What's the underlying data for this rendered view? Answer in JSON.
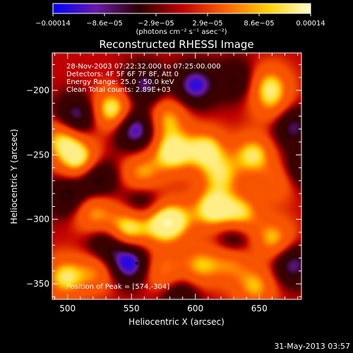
{
  "chart_data": {
    "type": "heatmap",
    "title": "Reconstructed RHESSI Image",
    "xlabel": "Heliocentric X (arcsec)",
    "ylabel": "Heliocentric Y (arcsec)",
    "xlim": [
      488,
      683
    ],
    "ylim": [
      -362,
      -171
    ],
    "x_ticks": [
      500,
      550,
      600,
      650
    ],
    "y_ticks": [
      -200,
      -250,
      -300,
      -350
    ],
    "x_tick_labels": [
      "500",
      "550",
      "600",
      "650"
    ],
    "y_tick_labels": [
      "−200",
      "−250",
      "−300",
      "−350"
    ],
    "colorbar": {
      "tick_labels": [
        "−0.00014",
        "−8.6e−05",
        "−2.9e−05",
        "2.9e−05",
        "8.6e−05",
        "0.00014"
      ],
      "units_label": "(photons cm⁻² s⁻¹ asec⁻²)",
      "range": [
        -0.00014,
        0.00014
      ],
      "colormap": [
        "#0000ff",
        "#6a1aa8",
        "#2a0000",
        "#c00000",
        "#ff6000",
        "#ffd000",
        "#ffffd0"
      ]
    },
    "annotations": [
      "28-Nov-2003 07:22:32.000 to 07:25:00.000",
      "Detectors: 4F 5F 6F 7F 8F, Att 0",
      "Energy Range: 25.0 - 50.0 keV",
      "Clean    Total counts: 2.89E+03"
    ],
    "peak_label": "Position of Peak = [574,-304]",
    "peak": [
      574,
      -304
    ],
    "blobs": [
      {
        "x": 535,
        "y": -215,
        "v": 1.0
      },
      {
        "x": 578,
        "y": -222,
        "v": 0.7
      },
      {
        "x": 658,
        "y": -196,
        "v": 0.75
      },
      {
        "x": 660,
        "y": -212,
        "v": 0.45
      },
      {
        "x": 496,
        "y": -238,
        "v": 0.8
      },
      {
        "x": 509,
        "y": -254,
        "v": 0.95
      },
      {
        "x": 582,
        "y": -248,
        "v": 1.0
      },
      {
        "x": 608,
        "y": -246,
        "v": 0.9
      },
      {
        "x": 558,
        "y": -265,
        "v": 0.7
      },
      {
        "x": 645,
        "y": -250,
        "v": 0.85
      },
      {
        "x": 620,
        "y": -266,
        "v": 0.7
      },
      {
        "x": 665,
        "y": -270,
        "v": 0.5
      },
      {
        "x": 585,
        "y": -300,
        "v": 0.6
      },
      {
        "x": 614,
        "y": -292,
        "v": 1.0
      },
      {
        "x": 636,
        "y": -296,
        "v": 0.8
      },
      {
        "x": 521,
        "y": -295,
        "v": 0.7
      },
      {
        "x": 547,
        "y": -307,
        "v": 0.95
      },
      {
        "x": 574,
        "y": -304,
        "v": 0.85
      },
      {
        "x": 661,
        "y": -315,
        "v": 0.75
      },
      {
        "x": 604,
        "y": -336,
        "v": 0.7
      },
      {
        "x": 628,
        "y": -333,
        "v": 0.6
      },
      {
        "x": 575,
        "y": -340,
        "v": 0.6
      },
      {
        "x": 498,
        "y": -345,
        "v": 0.85
      },
      {
        "x": 523,
        "y": -340,
        "v": 0.6
      },
      {
        "x": 647,
        "y": -352,
        "v": 0.7
      },
      {
        "x": 507,
        "y": -220,
        "v": -0.8
      },
      {
        "x": 560,
        "y": -196,
        "v": -0.7
      },
      {
        "x": 600,
        "y": -196,
        "v": -0.9
      },
      {
        "x": 632,
        "y": -192,
        "v": -0.5
      },
      {
        "x": 553,
        "y": -230,
        "v": -0.95
      },
      {
        "x": 523,
        "y": -268,
        "v": -0.7
      },
      {
        "x": 676,
        "y": -228,
        "v": -0.7
      },
      {
        "x": 680,
        "y": -262,
        "v": -0.5
      },
      {
        "x": 500,
        "y": -282,
        "v": -0.6
      },
      {
        "x": 558,
        "y": -286,
        "v": -0.5
      },
      {
        "x": 630,
        "y": -315,
        "v": -0.55
      },
      {
        "x": 548,
        "y": -334,
        "v": -1.0
      },
      {
        "x": 676,
        "y": -335,
        "v": -0.75
      },
      {
        "x": 588,
        "y": -358,
        "v": -0.5
      },
      {
        "x": 530,
        "y": -320,
        "v": -0.6
      }
    ]
  },
  "footer": {
    "date": "31-May-2013 03:57"
  }
}
